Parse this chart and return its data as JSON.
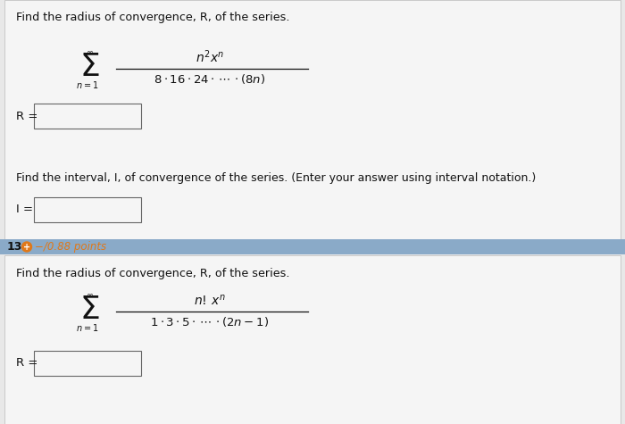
{
  "bg_color": "#e8e8e8",
  "white_bg": "#f5f5f5",
  "panel_bg": "#f0f0f0",
  "blue_bar_color": "#8aaac8",
  "text_color": "#111111",
  "orange_color": "#e07818",
  "problem_number": "13.",
  "points_text": "−/0.88 points",
  "top_question": "Find the radius of convergence, R, of the series.",
  "interval_question": "Find the interval, I, of convergence of the series. (Enter your answer using interval notation.)",
  "bottom_question": "Find the radius of convergence, R, of the series.",
  "R_label": "R =",
  "I_label": "I ="
}
